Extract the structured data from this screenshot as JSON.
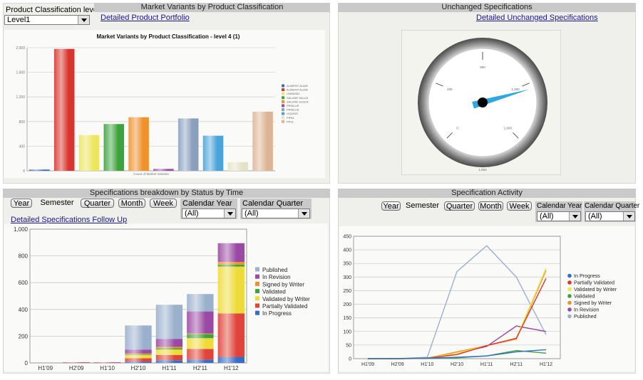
{
  "panel1": {
    "level_label": "Product Classification level",
    "level_value": "Level1",
    "title": "Market Variants by Product Classification",
    "link": "Detailed Product Portfolio",
    "chart_data": {
      "type": "bar",
      "title": "Market Variants by Product Classification - level 4 (1)",
      "xlabel": "Count of Market Variants",
      "ylim": [
        0,
        2000
      ],
      "yticks": [
        "0",
        "400",
        "800",
        "1,200",
        "1,600",
        "2,000"
      ],
      "values": [
        20,
        1980,
        580,
        760,
        870,
        30,
        850,
        570,
        140,
        960
      ],
      "colors": [
        "#3a6cc4",
        "#d9352e",
        "#ece55e",
        "#3ea33c",
        "#f0922c",
        "#9a4aa2",
        "#8a9fbc",
        "#4aa3da",
        "#e5e3c6",
        "#deb594"
      ],
      "legend": [
        "ALIMENT ALIAR",
        "ALIMENT ALIAR",
        "LINMUND",
        "SALUNE SALUS",
        "SALUNE SULEN",
        "PRINLUS",
        "PRINLUS",
        "LIQUIDS",
        "PIPAL",
        "PPUL"
      ]
    }
  },
  "panel2": {
    "title": "Unchanged Specifications",
    "link": "Detailed Unchanged Specifications",
    "gauge": {
      "value": 1550,
      "min": 0,
      "max": 2000,
      "tick_labels": [
        "0",
        "400",
        "800",
        "1,200",
        "1,600",
        "1,863"
      ]
    }
  },
  "panel3": {
    "title": "Specifications breakdown by Status by Time",
    "buttons": [
      "Year",
      "Semester",
      "Quarter",
      "Month",
      "Week"
    ],
    "active_button": "Semester",
    "calendar_year_label": "Calendar Year",
    "calendar_year_value": "(All)",
    "calendar_quarter_label": "Calendar Quarter",
    "calendar_quarter_value": "(All)",
    "link": "Detailed Specifications Follow Up",
    "chart_data": {
      "type": "stacked-bar",
      "categories": [
        "H1'09",
        "H2'09",
        "H1'10",
        "H2'10",
        "H1'11",
        "H2'11",
        "H1'12"
      ],
      "ylim": [
        0,
        1000
      ],
      "yticks": [
        "0",
        "200",
        "400",
        "600",
        "800",
        "1,000"
      ],
      "series": [
        {
          "name": "In Progress",
          "color": "#3a6cc4",
          "values": [
            0,
            0,
            0,
            10,
            20,
            25,
            45
          ]
        },
        {
          "name": "Partially Validated",
          "color": "#e0443a",
          "values": [
            0,
            3,
            3,
            25,
            40,
            80,
            325
          ]
        },
        {
          "name": "Validated by Writer",
          "color": "#eedb3a",
          "values": [
            0,
            0,
            0,
            25,
            40,
            80,
            350
          ]
        },
        {
          "name": "Validated",
          "color": "#3ea33c",
          "values": [
            0,
            0,
            0,
            5,
            10,
            30,
            15
          ]
        },
        {
          "name": "Signed by Writer",
          "color": "#f0922c",
          "values": [
            0,
            0,
            0,
            5,
            10,
            5,
            20
          ]
        },
        {
          "name": "In Revision",
          "color": "#9a4aa2",
          "values": [
            0,
            2,
            2,
            30,
            60,
            165,
            140
          ]
        },
        {
          "name": "Published",
          "color": "#9ab0cc",
          "values": [
            0,
            0,
            0,
            180,
            255,
            130,
            0
          ]
        }
      ],
      "legend_order": [
        "Published",
        "In Revision",
        "Signed by Writer",
        "Validated",
        "Validated by Writer",
        "Partially Validated",
        "In Progress"
      ]
    }
  },
  "panel4": {
    "title": "Specification Activity",
    "buttons": [
      "Year",
      "Semester",
      "Quarter",
      "Month",
      "Week"
    ],
    "active_button": "Semester",
    "calendar_year_label": "Calendar Year",
    "calendar_year_value": "(All)",
    "calendar_quarter_label": "Calendar Quarter",
    "calendar_quarter_value": "(All)",
    "chart_data": {
      "type": "line",
      "categories": [
        "H1'09",
        "H2'09",
        "H1'10",
        "H2'10",
        "H1'11",
        "H2'11",
        "H1'12"
      ],
      "ylim": [
        0,
        450
      ],
      "yticks": [
        "0",
        "50",
        "100",
        "150",
        "200",
        "250",
        "300",
        "350",
        "400",
        "450"
      ],
      "series": [
        {
          "name": "In Progress",
          "color": "#2f6fc8",
          "values": [
            0,
            0,
            2,
            5,
            10,
            25,
            33
          ]
        },
        {
          "name": "Partially Validated",
          "color": "#d9352e",
          "values": [
            0,
            0,
            2,
            15,
            48,
            75,
            295
          ]
        },
        {
          "name": "Validated by Writer",
          "color": "#f3e64a",
          "values": [
            0,
            0,
            2,
            20,
            48,
            75,
            333
          ]
        },
        {
          "name": "Validated",
          "color": "#3ea33c",
          "values": [
            0,
            0,
            1,
            3,
            10,
            30,
            20
          ]
        },
        {
          "name": "Signed by Writer",
          "color": "#f0922c",
          "values": [
            0,
            0,
            2,
            25,
            48,
            72,
            325
          ]
        },
        {
          "name": "In Revision",
          "color": "#9a4aa2",
          "values": [
            0,
            0,
            2,
            20,
            45,
            120,
            100
          ]
        },
        {
          "name": "Published",
          "color": "#9ab0cc",
          "values": [
            0,
            0,
            5,
            320,
            415,
            300,
            88
          ]
        }
      ]
    }
  }
}
